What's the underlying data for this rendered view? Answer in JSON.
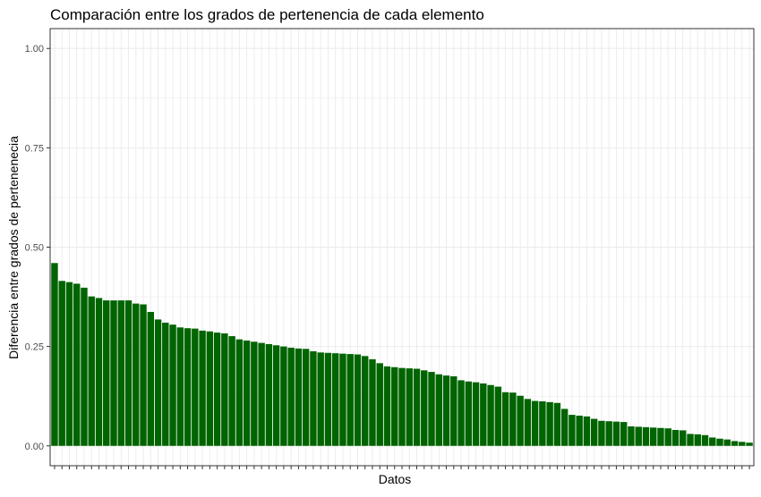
{
  "chart_data": {
    "type": "bar",
    "title": "Comparación entre los grados de pertenencia de cada elemento",
    "xlabel": "Datos",
    "ylabel": "Diferencia entre grados de pertenenecia",
    "ylim": [
      -0.05,
      1.05
    ],
    "yticks": [
      0.0,
      0.25,
      0.5,
      0.75,
      1.0
    ],
    "ytick_labels": [
      "0.00",
      "0.25",
      "0.50",
      "0.75",
      "1.00"
    ],
    "xticks_labeled": false,
    "grid": true,
    "bar_color": "#006400",
    "background": "#ffffff",
    "grid_color": "#ebebeb",
    "values": [
      0.46,
      0.415,
      0.412,
      0.408,
      0.398,
      0.376,
      0.372,
      0.366,
      0.366,
      0.366,
      0.366,
      0.358,
      0.356,
      0.337,
      0.318,
      0.31,
      0.305,
      0.298,
      0.296,
      0.295,
      0.29,
      0.288,
      0.285,
      0.283,
      0.276,
      0.268,
      0.265,
      0.262,
      0.259,
      0.256,
      0.253,
      0.25,
      0.247,
      0.245,
      0.244,
      0.238,
      0.235,
      0.234,
      0.233,
      0.232,
      0.231,
      0.23,
      0.226,
      0.218,
      0.208,
      0.2,
      0.198,
      0.196,
      0.195,
      0.194,
      0.19,
      0.186,
      0.18,
      0.177,
      0.175,
      0.165,
      0.162,
      0.16,
      0.157,
      0.153,
      0.149,
      0.135,
      0.134,
      0.126,
      0.118,
      0.113,
      0.112,
      0.11,
      0.108,
      0.093,
      0.078,
      0.076,
      0.074,
      0.068,
      0.063,
      0.062,
      0.061,
      0.06,
      0.049,
      0.048,
      0.047,
      0.046,
      0.045,
      0.044,
      0.04,
      0.039,
      0.03,
      0.029,
      0.027,
      0.021,
      0.018,
      0.016,
      0.012,
      0.01,
      0.008
    ]
  }
}
